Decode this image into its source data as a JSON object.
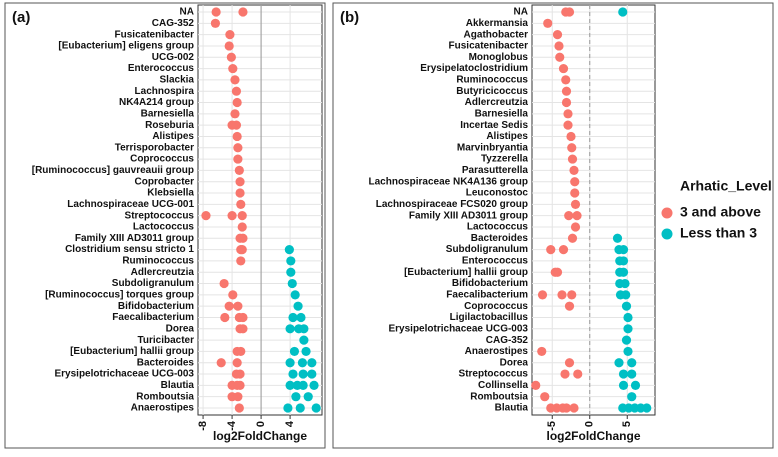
{
  "legend": {
    "title": "Arhatic_Level",
    "entries": [
      {
        "name": "3 and above",
        "color": "#F8766D"
      },
      {
        "name": "Less than 3",
        "color": "#00BFC4"
      }
    ]
  },
  "chart_data": [
    {
      "type": "dot",
      "panel_label": "(a)",
      "x_label": "log2FoldChange",
      "xlim": [
        -8.7,
        8.4
      ],
      "xticks": [
        -8,
        -4,
        0,
        4
      ],
      "vline": 0,
      "grid": true,
      "categories": [
        "NA",
        "CAG-352",
        "Fusicatenibacter",
        "[Eubacterium] eligens group",
        "UCG-002",
        "Enterococcus",
        "Slackia",
        "Lachnospira",
        "NK4A214 group",
        "Barnesiella",
        "Roseburia",
        "Alistipes",
        "Terrisporobacter",
        "Coprococcus",
        "[Ruminococcus] gauvreauii group",
        "Coprobacter",
        "Klebsiella",
        "Lachnospiraceae UCG-001",
        "Streptococcus",
        "Lactococcus",
        "Family XIII AD3011 group",
        "Clostridium sensu stricto 1",
        "Ruminococcus",
        "Adlercreutzia",
        "Subdoligranulum",
        "[Ruminococcus] torques group",
        "Bifidobacterium",
        "Faecalibacterium",
        "Dorea",
        "Turicibacter",
        "[Eubacterium] hallii group",
        "Bacteroides",
        "Erysipelotrichaceae UCG-003",
        "Blautia",
        "Romboutsia",
        "Anaerostipes"
      ],
      "series": [
        {
          "values": [
            [
              -6.2,
              -2.5
            ],
            [
              -6.3
            ],
            [
              -4.3
            ],
            [
              -4.4
            ],
            [
              -4.1
            ],
            [
              -3.9
            ],
            [
              -3.6
            ],
            [
              -3.4
            ],
            [
              -3.3
            ],
            [
              -3.6
            ],
            [
              -4.0,
              -3.4
            ],
            [
              -3.3
            ],
            [
              -3.2
            ],
            [
              -3.2
            ],
            [
              -3.0
            ],
            [
              -2.9
            ],
            [
              -2.9
            ],
            [
              -2.8
            ],
            [
              -7.6,
              -4.0,
              -2.6
            ],
            [
              -2.6
            ],
            [
              -2.9,
              -2.5
            ],
            [
              -2.8,
              -2.6
            ],
            [
              -2.8
            ],
            [],
            [
              -5.1
            ],
            [
              -3.9
            ],
            [
              -4.4,
              -3.2
            ],
            [
              -5.0,
              -3.0,
              -2.5
            ],
            [
              -2.9,
              -2.5
            ],
            [],
            [
              -3.3,
              -2.8
            ],
            [
              -5.5,
              -3.3
            ],
            [
              -3.4,
              -2.9
            ],
            [
              -4.0,
              -3.3,
              -2.9
            ],
            [
              -4.0,
              -3.2
            ],
            [
              -3.0
            ]
          ]
        },
        {
          "values": [
            [],
            [],
            [],
            [],
            [],
            [],
            [],
            [],
            [],
            [],
            [],
            [],
            [],
            [],
            [],
            [],
            [],
            [],
            [],
            [],
            [],
            [
              3.9
            ],
            [
              4.1
            ],
            [
              4.1
            ],
            [
              4.3
            ],
            [
              4.7
            ],
            [
              5.1
            ],
            [
              4.4,
              5.5
            ],
            [
              4.0,
              5.2,
              5.9
            ],
            [
              5.9
            ],
            [
              4.6,
              6.2
            ],
            [
              4.0,
              5.7,
              7.0
            ],
            [
              4.4,
              5.8,
              7.0
            ],
            [
              4.0,
              5.0,
              5.8,
              7.3
            ],
            [
              4.8,
              6.5
            ],
            [
              3.7,
              5.4,
              7.6
            ]
          ]
        }
      ]
    },
    {
      "type": "dot",
      "panel_label": "(b)",
      "x_label": "log2FoldChange",
      "xlim": [
        -7.7,
        8.7
      ],
      "xticks": [
        -5,
        0,
        5
      ],
      "vline": 0,
      "grid": true,
      "categories": [
        "NA",
        "Akkermansia",
        "Agathobacter",
        "Fusicatenibacter",
        "Monoglobus",
        "Erysipelatoclostridium",
        "Ruminococcus",
        "Butyricicoccus",
        "Adlercreutzia",
        "Barnesiella",
        "Incertae Sedis",
        "Alistipes",
        "Marvinbryantia",
        "Tyzzerella",
        "Parasutterella",
        "Lachnospiraceae NK4A136 group",
        "Leuconostoc",
        "Lachnospiraceae FCS020 group",
        "Family XIII AD3011 group",
        "Lactococcus",
        "Bacteroides",
        "Subdoligranulum",
        "Enterococcus",
        "[Eubacterium] hallii group",
        "Bifidobacterium",
        "Faecalibacterium",
        "Coprococcus",
        "Ligilactobacillus",
        "Erysipelotrichaceae UCG-003",
        "CAG-352",
        "Anaerostipes",
        "Dorea",
        "Streptococcus",
        "Collinsella",
        "Romboutsia",
        "Blautia"
      ],
      "series": [
        {
          "values": [
            [
              -3.2,
              -2.7
            ],
            [
              -5.6
            ],
            [
              -4.3
            ],
            [
              -4.1
            ],
            [
              -4.0
            ],
            [
              -3.5
            ],
            [
              -3.2
            ],
            [
              -3.1
            ],
            [
              -3.1
            ],
            [
              -2.9
            ],
            [
              -2.9
            ],
            [
              -2.5
            ],
            [
              -2.4
            ],
            [
              -2.3
            ],
            [
              -2.1
            ],
            [
              -2.0
            ],
            [
              -2.0
            ],
            [
              -1.9
            ],
            [
              -2.8,
              -1.7
            ],
            [
              -1.9
            ],
            [
              -2.3
            ],
            [
              -5.2,
              -3.5
            ],
            [],
            [
              -4.6,
              -4.3
            ],
            [],
            [
              -6.3,
              -3.7,
              -2.4
            ],
            [
              -2.7
            ],
            [],
            [],
            [],
            [
              -6.4
            ],
            [
              -2.7
            ],
            [
              -3.3,
              -1.6
            ],
            [
              -7.2
            ],
            [
              -6.0
            ],
            [
              -5.2,
              -4.4,
              -3.6,
              -3.1,
              -2.1
            ]
          ]
        },
        {
          "values": [
            [
              4.4
            ],
            [],
            [],
            [],
            [],
            [],
            [],
            [],
            [],
            [],
            [],
            [],
            [],
            [],
            [],
            [],
            [],
            [],
            [],
            [],
            [
              3.7
            ],
            [
              3.9,
              4.5
            ],
            [
              4.0,
              4.5
            ],
            [
              4.0,
              4.5
            ],
            [
              4.0,
              4.7
            ],
            [
              4.1,
              4.8
            ],
            [
              4.9
            ],
            [
              5.1
            ],
            [
              5.1
            ],
            [
              4.9
            ],
            [
              5.1
            ],
            [
              3.9,
              5.6
            ],
            [
              4.5,
              5.6
            ],
            [
              4.5,
              6.1
            ],
            [
              5.6
            ],
            [
              4.4,
              5.2,
              6.0,
              6.8,
              7.6
            ]
          ]
        }
      ]
    }
  ]
}
